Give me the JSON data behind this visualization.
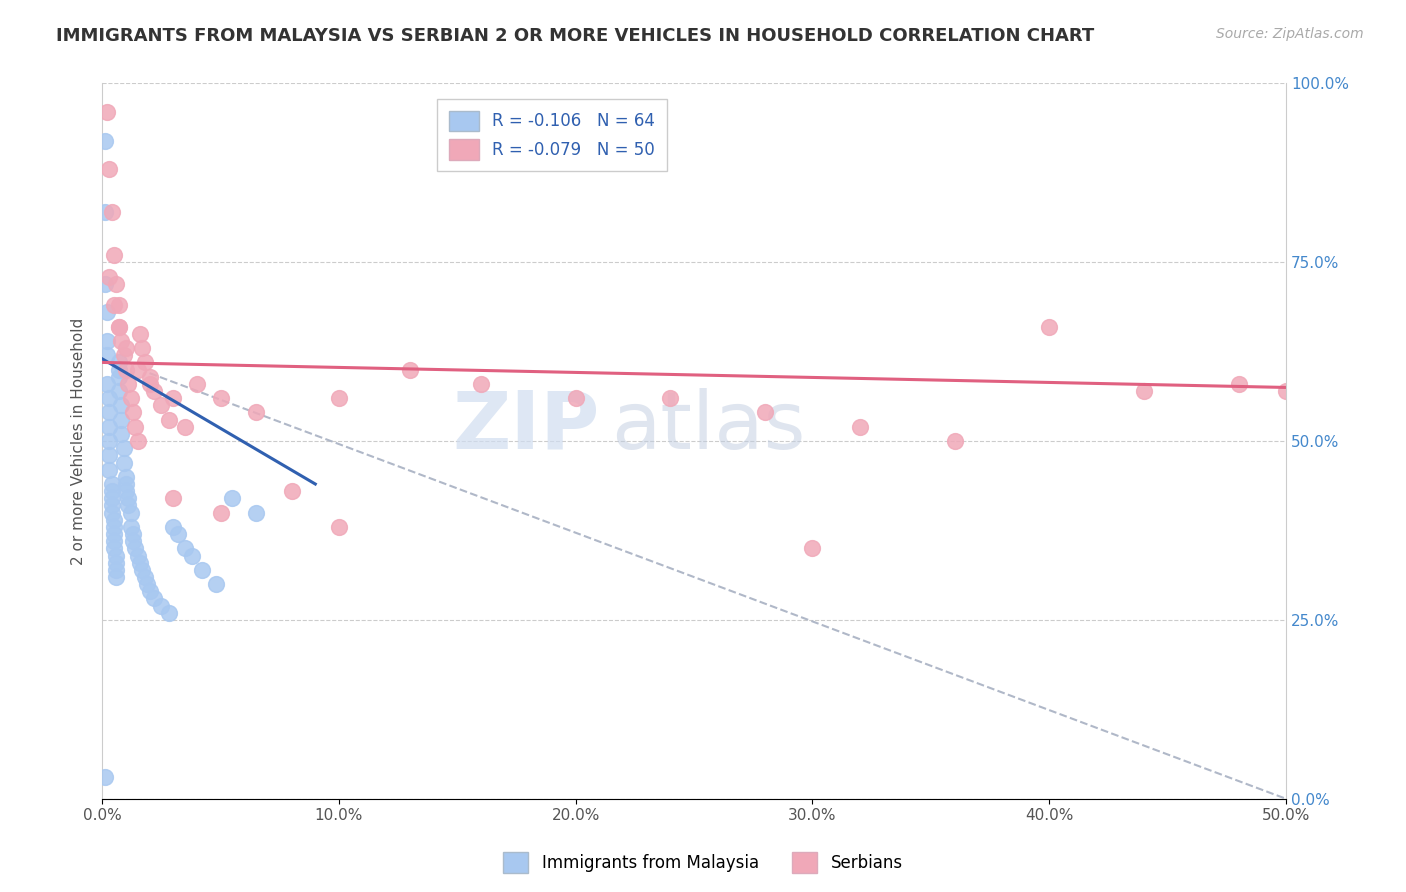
{
  "title": "IMMIGRANTS FROM MALAYSIA VS SERBIAN 2 OR MORE VEHICLES IN HOUSEHOLD CORRELATION CHART",
  "source_text": "Source: ZipAtlas.com",
  "ylabel": "2 or more Vehicles in Household",
  "xlim": [
    0.0,
    0.5
  ],
  "ylim": [
    0.0,
    1.0
  ],
  "xticks": [
    0.0,
    0.1,
    0.2,
    0.3,
    0.4,
    0.5
  ],
  "xticklabels": [
    "0.0%",
    "10.0%",
    "20.0%",
    "30.0%",
    "40.0%",
    "50.0%"
  ],
  "yticks": [
    0.0,
    0.25,
    0.5,
    0.75,
    1.0
  ],
  "yticklabels": [
    "0.0%",
    "25.0%",
    "50.0%",
    "75.0%",
    "100.0%"
  ],
  "legend1_label": "R = -0.106   N = 64",
  "legend2_label": "R = -0.079   N = 50",
  "legend_x_label": "Immigrants from Malaysia",
  "legend_y_label": "Serbians",
  "blue_color": "#a8c8f0",
  "pink_color": "#f0a8b8",
  "blue_line_color": "#3060b0",
  "pink_line_color": "#e06080",
  "dashed_line_color": "#b0b8c8",
  "watermark_zip": "ZIP",
  "watermark_atlas": "atlas",
  "blue_scatter_x": [
    0.001,
    0.001,
    0.001,
    0.002,
    0.002,
    0.002,
    0.002,
    0.003,
    0.003,
    0.003,
    0.003,
    0.003,
    0.003,
    0.004,
    0.004,
    0.004,
    0.004,
    0.004,
    0.005,
    0.005,
    0.005,
    0.005,
    0.005,
    0.006,
    0.006,
    0.006,
    0.006,
    0.007,
    0.007,
    0.007,
    0.007,
    0.008,
    0.008,
    0.008,
    0.009,
    0.009,
    0.01,
    0.01,
    0.01,
    0.011,
    0.011,
    0.012,
    0.012,
    0.013,
    0.013,
    0.014,
    0.015,
    0.016,
    0.017,
    0.018,
    0.019,
    0.02,
    0.022,
    0.025,
    0.028,
    0.03,
    0.032,
    0.035,
    0.038,
    0.042,
    0.048,
    0.055,
    0.065,
    0.001
  ],
  "blue_scatter_y": [
    0.92,
    0.82,
    0.72,
    0.68,
    0.64,
    0.62,
    0.58,
    0.56,
    0.54,
    0.52,
    0.5,
    0.48,
    0.46,
    0.44,
    0.43,
    0.42,
    0.41,
    0.4,
    0.39,
    0.38,
    0.37,
    0.36,
    0.35,
    0.34,
    0.33,
    0.32,
    0.31,
    0.61,
    0.6,
    0.59,
    0.57,
    0.55,
    0.53,
    0.51,
    0.49,
    0.47,
    0.45,
    0.44,
    0.43,
    0.42,
    0.41,
    0.4,
    0.38,
    0.37,
    0.36,
    0.35,
    0.34,
    0.33,
    0.32,
    0.31,
    0.3,
    0.29,
    0.28,
    0.27,
    0.26,
    0.38,
    0.37,
    0.35,
    0.34,
    0.32,
    0.3,
    0.42,
    0.4,
    0.03
  ],
  "pink_scatter_x": [
    0.002,
    0.003,
    0.004,
    0.005,
    0.006,
    0.007,
    0.007,
    0.008,
    0.009,
    0.01,
    0.011,
    0.012,
    0.013,
    0.014,
    0.015,
    0.016,
    0.017,
    0.018,
    0.02,
    0.022,
    0.025,
    0.028,
    0.03,
    0.035,
    0.04,
    0.05,
    0.065,
    0.08,
    0.1,
    0.13,
    0.16,
    0.2,
    0.24,
    0.28,
    0.32,
    0.36,
    0.4,
    0.44,
    0.48,
    0.5,
    0.003,
    0.005,
    0.007,
    0.01,
    0.015,
    0.02,
    0.03,
    0.05,
    0.1,
    0.3
  ],
  "pink_scatter_y": [
    0.96,
    0.88,
    0.82,
    0.76,
    0.72,
    0.69,
    0.66,
    0.64,
    0.62,
    0.6,
    0.58,
    0.56,
    0.54,
    0.52,
    0.5,
    0.65,
    0.63,
    0.61,
    0.59,
    0.57,
    0.55,
    0.53,
    0.56,
    0.52,
    0.58,
    0.56,
    0.54,
    0.43,
    0.56,
    0.6,
    0.58,
    0.56,
    0.56,
    0.54,
    0.52,
    0.5,
    0.66,
    0.57,
    0.58,
    0.57,
    0.73,
    0.69,
    0.66,
    0.63,
    0.6,
    0.58,
    0.42,
    0.4,
    0.38,
    0.35
  ],
  "blue_line_x0": 0.0,
  "blue_line_y0": 0.615,
  "blue_line_x1": 0.09,
  "blue_line_y1": 0.44,
  "pink_line_x0": 0.0,
  "pink_line_y0": 0.61,
  "pink_line_x1": 0.5,
  "pink_line_y1": 0.575,
  "dash_line_x0": 0.02,
  "dash_line_y0": 0.595,
  "dash_line_x1": 0.5,
  "dash_line_y1": 0.0
}
